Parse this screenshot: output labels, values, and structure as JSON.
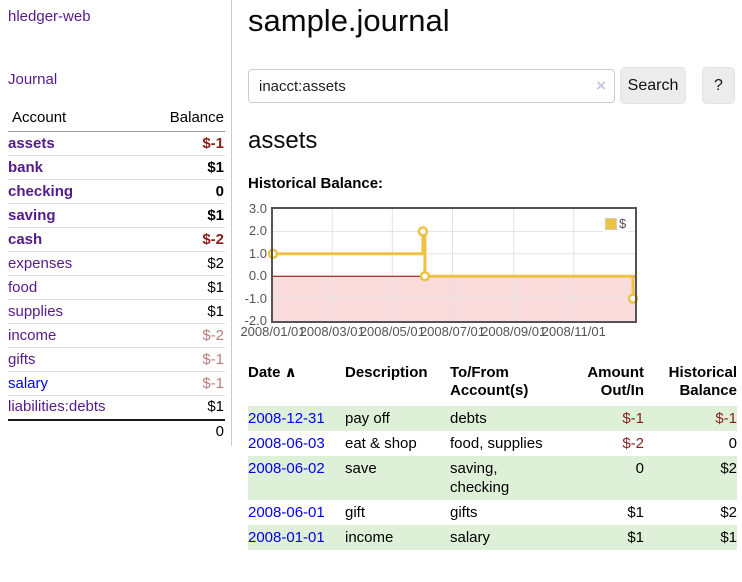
{
  "app": {
    "title": "hledger-web"
  },
  "nav": {
    "journal": "Journal"
  },
  "sidebar": {
    "headers": {
      "account": "Account",
      "balance": "Balance"
    },
    "accounts": [
      {
        "name": "assets",
        "balance": "$-1",
        "level": 1,
        "bold": true,
        "link": "visited",
        "bal_class": "neg"
      },
      {
        "name": "bank",
        "balance": "$1",
        "level": 2,
        "bold": true,
        "link": "visited",
        "bal_class": "pos"
      },
      {
        "name": "checking",
        "balance": "0",
        "level": 3,
        "bold": true,
        "link": "visited",
        "bal_class": "pos"
      },
      {
        "name": "saving",
        "balance": "$1",
        "level": 3,
        "bold": true,
        "link": "visited",
        "bal_class": "pos"
      },
      {
        "name": "cash",
        "balance": "$-2",
        "level": 2,
        "bold": true,
        "link": "visited",
        "bal_class": "neg"
      },
      {
        "name": "expenses",
        "balance": "$2",
        "level": 1,
        "bold": false,
        "link": "visited",
        "bal_class": "pos"
      },
      {
        "name": "food",
        "balance": "$1",
        "level": 2,
        "bold": false,
        "link": "visited",
        "bal_class": "pos"
      },
      {
        "name": "supplies",
        "balance": "$1",
        "level": 2,
        "bold": false,
        "link": "visited",
        "bal_class": "pos"
      },
      {
        "name": "income",
        "balance": "$-2",
        "level": 1,
        "bold": false,
        "link": "visited",
        "bal_class": "neg-light"
      },
      {
        "name": "gifts",
        "balance": "$-1",
        "level": 2,
        "bold": false,
        "link": "visited",
        "bal_class": "neg-light"
      },
      {
        "name": "salary",
        "balance": "$-1",
        "level": 2,
        "bold": false,
        "link": "unvisited",
        "bal_class": "neg-light"
      },
      {
        "name": "liabilities:debts",
        "balance": "$1",
        "level": 1,
        "bold": false,
        "link": "visited",
        "bal_class": "pos"
      }
    ],
    "total": "0"
  },
  "main": {
    "title": "sample.journal"
  },
  "search": {
    "value": "inacct:assets",
    "clear_icon": "×",
    "submit_label": "Search",
    "help_label": "?"
  },
  "account_page": {
    "heading": "assets",
    "chart_title": "Historical Balance:"
  },
  "chart_data": {
    "type": "line",
    "step": true,
    "title": "Historical Balance",
    "ylim": [
      -2.0,
      3.0
    ],
    "yticks": [
      "3.0",
      "2.0",
      "1.0",
      "0.0",
      "-1.0",
      "-2.0"
    ],
    "ytick_values": [
      3,
      2,
      1,
      0,
      -1,
      -2
    ],
    "xticks": [
      "2008/01/01",
      "2008/03/01",
      "2008/05/01",
      "2008/07/01",
      "2008/09/01",
      "2008/11/01"
    ],
    "xtick_dates": [
      "2008-01-01",
      "2008-03-01",
      "2008-05-01",
      "2008-07-01",
      "2008-09-01",
      "2008-11-01"
    ],
    "xrange": [
      "2008-01-01",
      "2008-12-31"
    ],
    "legend_position": "top-right",
    "grid": true,
    "series": [
      {
        "name": "$",
        "color": "#edc240",
        "points": [
          {
            "x": "2008-01-01",
            "y": 1
          },
          {
            "x": "2008-06-01",
            "y": 2
          },
          {
            "x": "2008-06-03",
            "y": 0
          },
          {
            "x": "2008-12-31",
            "y": -1
          }
        ]
      }
    ],
    "negative_region_color": "#fbdcdc",
    "zero_line_color": "#8b0000"
  },
  "register": {
    "columns": [
      {
        "key": "date",
        "lines": [
          "Date"
        ],
        "align": "left",
        "sort_icon": "∧",
        "sortable": true
      },
      {
        "key": "description",
        "lines": [
          "Description"
        ],
        "align": "left",
        "sortable": false
      },
      {
        "key": "accounts",
        "lines": [
          "To/From",
          "Account(s)"
        ],
        "align": "left",
        "sortable": false
      },
      {
        "key": "amount",
        "lines": [
          "Amount",
          "Out/In"
        ],
        "align": "right",
        "sortable": false
      },
      {
        "key": "balance",
        "lines": [
          "Historical",
          "Balance"
        ],
        "align": "right",
        "sortable": false
      }
    ],
    "rows": [
      {
        "date": "2008-12-31",
        "description": "pay off",
        "accounts": "debts",
        "amount": "$-1",
        "amount_negative": true,
        "balance": "$-1",
        "balance_negative": true,
        "shaded": true
      },
      {
        "date": "2008-06-03",
        "description": "eat & shop",
        "accounts": "food, supplies",
        "amount": "$-2",
        "amount_negative": true,
        "balance": "0",
        "balance_negative": false,
        "shaded": false
      },
      {
        "date": "2008-06-02",
        "description": "save",
        "accounts": "saving, checking",
        "amount": "0",
        "amount_negative": false,
        "balance": "$2",
        "balance_negative": false,
        "shaded": true
      },
      {
        "date": "2008-06-01",
        "description": "gift",
        "accounts": "gifts",
        "amount": "$1",
        "amount_negative": false,
        "balance": "$2",
        "balance_negative": false,
        "shaded": false
      },
      {
        "date": "2008-01-01",
        "description": "income",
        "accounts": "salary",
        "amount": "$1",
        "amount_negative": false,
        "balance": "$1",
        "balance_negative": false,
        "shaded": true
      }
    ]
  },
  "colors": {
    "link_visited_purple": "#551a8b",
    "link_blue": "#0000ee",
    "negative_strong": "#871f1f",
    "negative_light": "#bb7d7d",
    "row_stripe_green": "#dff0d8",
    "chart_line_gold": "#edc240",
    "chart_negative_bg": "#fbdcdc",
    "chart_zero_line": "#8b0000",
    "chart_frame": "#545454"
  }
}
